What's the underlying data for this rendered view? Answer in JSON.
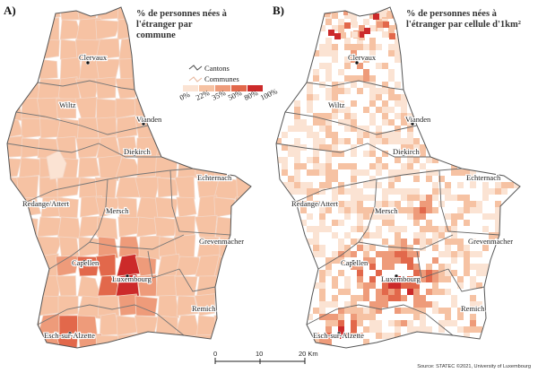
{
  "panels": [
    {
      "letter": "A)",
      "title": "% de personnes nées à l'étranger par commune"
    },
    {
      "letter": "B)",
      "title": "% de personnes nées à l'étranger par cellule d'1km²"
    }
  ],
  "places": [
    "Clervaux",
    "Wiltz",
    "Vianden",
    "Diekirch",
    "Echternach",
    "Redange/Attert",
    "Mersch",
    "Grevenmacher",
    "Capellen",
    "Luxembourg",
    "Remich",
    "Esch-sur-Alzette"
  ],
  "legend": {
    "cantons_label": "Cantons",
    "communes_label": "Communes",
    "classes": [
      "0%",
      "22%",
      "35%",
      "50%",
      "80%",
      "100%"
    ],
    "colors": [
      "#fbe3d3",
      "#f6c2a3",
      "#ee9b7a",
      "#e2684b",
      "#cc2a2a"
    ]
  },
  "scale": {
    "labels": [
      "0",
      "10",
      "20 Km"
    ]
  },
  "source": "Source: STATEC ©2021, University of Luxembourg"
}
